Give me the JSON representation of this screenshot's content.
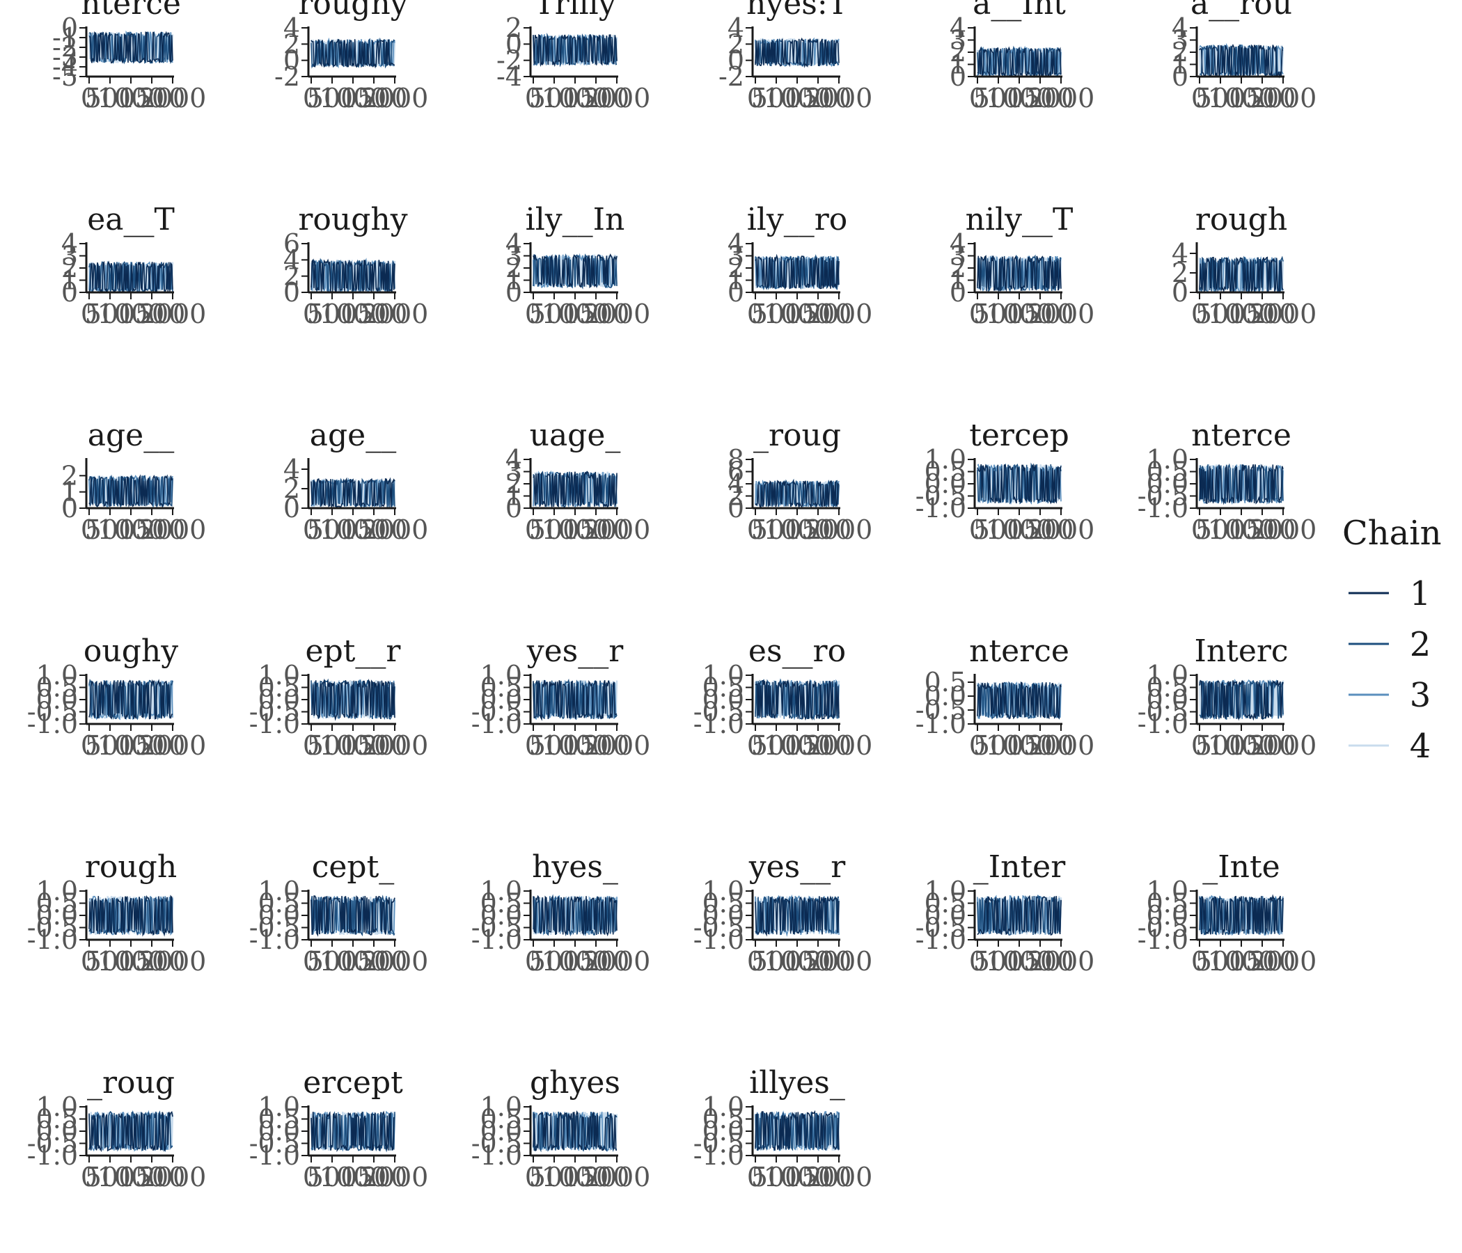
{
  "chart_data": {
    "type": "line",
    "layout": {
      "columns": 6,
      "rows": 6
    },
    "legend": {
      "title": "Chain",
      "placement": "right",
      "entries": [
        {
          "label": "1",
          "color": "#0b2a52"
        },
        {
          "label": "2",
          "color": "#1e4f7e"
        },
        {
          "label": "3",
          "color": "#5b8fbd"
        },
        {
          "label": "4",
          "color": "#c9dced"
        }
      ]
    },
    "panels": [
      {
        "title": "nterce",
        "ylim": [
          -5,
          0
        ],
        "yticks": [
          "0",
          "-1",
          "-2",
          "-3",
          "-4",
          "-5"
        ],
        "xticks": [
          "0",
          "500",
          "1000",
          "1500",
          "2000"
        ],
        "band": [
          -3.6,
          -0.4
        ]
      },
      {
        "title": "roughy",
        "ylim": [
          -2,
          4
        ],
        "yticks": [
          "4",
          "2",
          "0",
          "-2"
        ],
        "xticks": [
          "0",
          "500",
          "1000",
          "1500",
          "2000"
        ],
        "band": [
          -0.8,
          2.6
        ]
      },
      {
        "title": "Trilly",
        "ylim": [
          -4,
          2
        ],
        "yticks": [
          "2",
          "0",
          "-2",
          "-4"
        ],
        "xticks": [
          "0",
          "500",
          "1000",
          "1500",
          "2000"
        ],
        "band": [
          -2.6,
          1.2
        ]
      },
      {
        "title": "hyes:T",
        "ylim": [
          -2,
          4
        ],
        "yticks": [
          "4",
          "2",
          "0",
          "-2"
        ],
        "xticks": [
          "0",
          "500",
          "1000",
          "1500",
          "2000"
        ],
        "band": [
          -0.7,
          2.7
        ]
      },
      {
        "title": "a__Int",
        "ylim": [
          0,
          4
        ],
        "yticks": [
          "4",
          "3",
          "2",
          "1",
          "0"
        ],
        "xticks": [
          "0",
          "500",
          "1000",
          "1500",
          "2000"
        ],
        "band": [
          0.0,
          2.4
        ]
      },
      {
        "title": "a__rou",
        "ylim": [
          0,
          4
        ],
        "yticks": [
          "4",
          "3",
          "2",
          "1",
          "0"
        ],
        "xticks": [
          "0",
          "500",
          "1000",
          "1500",
          "2000"
        ],
        "band": [
          0.0,
          2.6
        ]
      },
      {
        "title": "ea__T",
        "ylim": [
          0,
          4
        ],
        "yticks": [
          "4",
          "3",
          "2",
          "1",
          "0"
        ],
        "xticks": [
          "0",
          "500",
          "1000",
          "1500",
          "2000"
        ],
        "band": [
          0.0,
          2.5
        ]
      },
      {
        "title": "roughy",
        "ylim": [
          0,
          6
        ],
        "yticks": [
          "6",
          "4",
          "2",
          "0"
        ],
        "xticks": [
          "0",
          "500",
          "1000",
          "1500",
          "2000"
        ],
        "band": [
          0.0,
          4.0
        ]
      },
      {
        "title": "ily__In",
        "ylim": [
          0,
          4
        ],
        "yticks": [
          "4",
          "3",
          "2",
          "1",
          "0"
        ],
        "xticks": [
          "0",
          "500",
          "1000",
          "1500",
          "2000"
        ],
        "band": [
          0.4,
          3.1
        ]
      },
      {
        "title": "ily__ro",
        "ylim": [
          0,
          4
        ],
        "yticks": [
          "4",
          "3",
          "2",
          "1",
          "0"
        ],
        "xticks": [
          "0",
          "500",
          "1000",
          "1500",
          "2000"
        ],
        "band": [
          0.3,
          3.0
        ]
      },
      {
        "title": "nily__T",
        "ylim": [
          0,
          4
        ],
        "yticks": [
          "4",
          "3",
          "2",
          "1",
          "0"
        ],
        "xticks": [
          "0",
          "500",
          "1000",
          "1500",
          "2000"
        ],
        "band": [
          0.1,
          3.0
        ]
      },
      {
        "title": "rough",
        "ylim": [
          0,
          5
        ],
        "yticks": [
          "4",
          "2",
          "0"
        ],
        "xticks": [
          "0",
          "500",
          "1000",
          "1500",
          "2000"
        ],
        "band": [
          0.0,
          3.6
        ]
      },
      {
        "title": "age__",
        "ylim": [
          0,
          3
        ],
        "yticks": [
          "2",
          "1",
          "0"
        ],
        "xticks": [
          "0",
          "500",
          "1000",
          "1500",
          "2000"
        ],
        "band": [
          0.1,
          2.0
        ]
      },
      {
        "title": "age__",
        "ylim": [
          0,
          5
        ],
        "yticks": [
          "4",
          "2",
          "0"
        ],
        "xticks": [
          "0",
          "500",
          "1000",
          "1500",
          "2000"
        ],
        "band": [
          0.1,
          3.0
        ]
      },
      {
        "title": "uage_",
        "ylim": [
          0,
          4
        ],
        "yticks": [
          "4",
          "3",
          "2",
          "1",
          "0"
        ],
        "xticks": [
          "0",
          "500",
          "1000",
          "1500",
          "2000"
        ],
        "band": [
          0.1,
          3.0
        ]
      },
      {
        "title": "_roug",
        "ylim": [
          0,
          8
        ],
        "yticks": [
          "8",
          "6",
          "4",
          "2",
          "0"
        ],
        "xticks": [
          "0",
          "500",
          "1000",
          "1500",
          "2000"
        ],
        "band": [
          0.2,
          4.5
        ]
      },
      {
        "title": "tercep",
        "ylim": [
          -1,
          1
        ],
        "yticks": [
          "1.0",
          "0.5",
          "0.0",
          "-0.5",
          "-1.0"
        ],
        "xticks": [
          "0",
          "500",
          "1000",
          "1500",
          "2000"
        ],
        "band": [
          -0.8,
          0.8
        ]
      },
      {
        "title": "nterce",
        "ylim": [
          -1,
          1
        ],
        "yticks": [
          "1.0",
          "0.5",
          "0.0",
          "-0.5",
          "-1.0"
        ],
        "xticks": [
          "0",
          "500",
          "1000",
          "1500",
          "2000"
        ],
        "band": [
          -0.8,
          0.8
        ]
      },
      {
        "title": "oughy",
        "ylim": [
          -1,
          1
        ],
        "yticks": [
          "1.0",
          "0.5",
          "0.0",
          "-0.5",
          "-1.0"
        ],
        "xticks": [
          "0",
          "500",
          "1000",
          "1500",
          "2000"
        ],
        "band": [
          -0.8,
          0.8
        ]
      },
      {
        "title": "ept__r",
        "ylim": [
          -1,
          1
        ],
        "yticks": [
          "1.0",
          "0.5",
          "0.0",
          "-0.5",
          "-1.0"
        ],
        "xticks": [
          "0",
          "500",
          "1000",
          "1500",
          "2000"
        ],
        "band": [
          -0.8,
          0.8
        ]
      },
      {
        "title": "yes__r",
        "ylim": [
          -1,
          1
        ],
        "yticks": [
          "1.0",
          "0.5",
          "0.0",
          "-0.5",
          "-1.0"
        ],
        "xticks": [
          "0",
          "500",
          "1000",
          "1500",
          "2000"
        ],
        "band": [
          -0.8,
          0.8
        ]
      },
      {
        "title": "es__ro",
        "ylim": [
          -1,
          1
        ],
        "yticks": [
          "1.0",
          "0.5",
          "0.0",
          "-0.5",
          "-1.0"
        ],
        "xticks": [
          "0",
          "500",
          "1000",
          "1500",
          "2000"
        ],
        "band": [
          -0.8,
          0.8
        ]
      },
      {
        "title": "nterce",
        "ylim": [
          -1,
          0.75
        ],
        "yticks": [
          "0.5",
          "0.0",
          "-0.5",
          "-1.0"
        ],
        "xticks": [
          "0",
          "500",
          "1000",
          "1500",
          "2000"
        ],
        "band": [
          -0.8,
          0.5
        ]
      },
      {
        "title": "Interc",
        "ylim": [
          -1,
          1
        ],
        "yticks": [
          "1.0",
          "0.5",
          "0.0",
          "-0.5",
          "-1.0"
        ],
        "xticks": [
          "0",
          "500",
          "1000",
          "1500",
          "2000"
        ],
        "band": [
          -0.8,
          0.8
        ]
      },
      {
        "title": "rough",
        "ylim": [
          -1,
          1
        ],
        "yticks": [
          "1.0",
          "0.5",
          "0.0",
          "-0.5",
          "-1.0"
        ],
        "xticks": [
          "0",
          "500",
          "1000",
          "1500",
          "2000"
        ],
        "band": [
          -0.8,
          0.8
        ]
      },
      {
        "title": "cept_",
        "ylim": [
          -1,
          1
        ],
        "yticks": [
          "1.0",
          "0.5",
          "0.0",
          "-0.5",
          "-1.0"
        ],
        "xticks": [
          "0",
          "500",
          "1000",
          "1500",
          "2000"
        ],
        "band": [
          -0.8,
          0.8
        ]
      },
      {
        "title": "hyes_",
        "ylim": [
          -1,
          1
        ],
        "yticks": [
          "1.0",
          "0.5",
          "0.0",
          "-0.5",
          "-1.0"
        ],
        "xticks": [
          "0",
          "500",
          "1000",
          "1500",
          "2000"
        ],
        "band": [
          -0.8,
          0.8
        ]
      },
      {
        "title": "yes__r",
        "ylim": [
          -1,
          1
        ],
        "yticks": [
          "1.0",
          "0.5",
          "0.0",
          "-0.5",
          "-1.0"
        ],
        "xticks": [
          "0",
          "500",
          "1000",
          "1500",
          "2000"
        ],
        "band": [
          -0.8,
          0.8
        ]
      },
      {
        "title": "_Inter",
        "ylim": [
          -1,
          1
        ],
        "yticks": [
          "1.0",
          "0.5",
          "0.0",
          "-0.5",
          "-1.0"
        ],
        "xticks": [
          "0",
          "500",
          "1000",
          "1500",
          "2000"
        ],
        "band": [
          -0.8,
          0.8
        ]
      },
      {
        "title": "_Inte",
        "ylim": [
          -1,
          1
        ],
        "yticks": [
          "1.0",
          "0.5",
          "0.0",
          "-0.5",
          "-1.0"
        ],
        "xticks": [
          "0",
          "500",
          "1000",
          "1500",
          "2000"
        ],
        "band": [
          -0.8,
          0.8
        ]
      },
      {
        "title": "_roug",
        "ylim": [
          -1,
          1
        ],
        "yticks": [
          "1.0",
          "0.5",
          "0.0",
          "-0.5",
          "-1.0"
        ],
        "xticks": [
          "0",
          "500",
          "1000",
          "1500",
          "2000"
        ],
        "band": [
          -0.8,
          0.8
        ]
      },
      {
        "title": "ercept",
        "ylim": [
          -1,
          1
        ],
        "yticks": [
          "1.0",
          "0.5",
          "0.0",
          "-0.5",
          "-1.0"
        ],
        "xticks": [
          "0",
          "500",
          "1000",
          "1500",
          "2000"
        ],
        "band": [
          -0.8,
          0.8
        ]
      },
      {
        "title": "ghyes",
        "ylim": [
          -1,
          1
        ],
        "yticks": [
          "1.0",
          "0.5",
          "0.0",
          "-0.5",
          "-1.0"
        ],
        "xticks": [
          "0",
          "500",
          "1000",
          "1500",
          "2000"
        ],
        "band": [
          -0.8,
          0.8
        ]
      },
      {
        "title": "illyes_",
        "ylim": [
          -1,
          1
        ],
        "yticks": [
          "1.0",
          "0.5",
          "0.0",
          "-0.5",
          "-1.0"
        ],
        "xticks": [
          "0",
          "500",
          "1000",
          "1500",
          "2000"
        ],
        "band": [
          -0.8,
          0.8
        ]
      }
    ],
    "xlim": [
      0,
      2000
    ],
    "grid": false
  }
}
